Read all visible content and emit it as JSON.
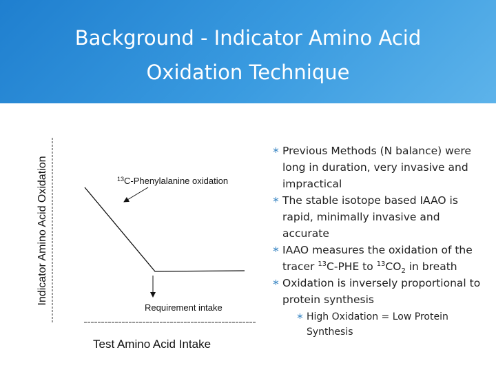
{
  "header": {
    "title": "Background - Indicator Amino Acid Oxidation Technique"
  },
  "figure": {
    "y_label": "Indicator Amino Acid Oxidation",
    "x_label": "Test Amino Acid Intake",
    "annotations": [
      {
        "sup": "13",
        "text": "C-Phenylalanine oxidation"
      },
      {
        "text": "Requirement intake"
      }
    ]
  },
  "bullets": [
    {
      "parts": [
        {
          "text": "Previous Methods (N balance) were long in duration, very invasive and impractical"
        }
      ]
    },
    {
      "parts": [
        {
          "text": "The stable isotope based IAAO is rapid, minimally invasive and accurate"
        }
      ]
    },
    {
      "parts": [
        {
          "text": "IAAO measures the oxidation of the tracer "
        },
        {
          "text": "13",
          "pos": "sup"
        },
        {
          "text": "C-PHE to "
        },
        {
          "text": "13",
          "pos": "sup"
        },
        {
          "text": "CO"
        },
        {
          "text": "2",
          "pos": "sub"
        },
        {
          "text": " in breath"
        }
      ]
    },
    {
      "parts": [
        {
          "text": "Oxidation is inversely proportional to protein synthesis"
        }
      ]
    },
    {
      "parts": [
        {
          "text": "High Oxidation = Low Protein Synthesis"
        }
      ],
      "level": 2
    }
  ]
}
